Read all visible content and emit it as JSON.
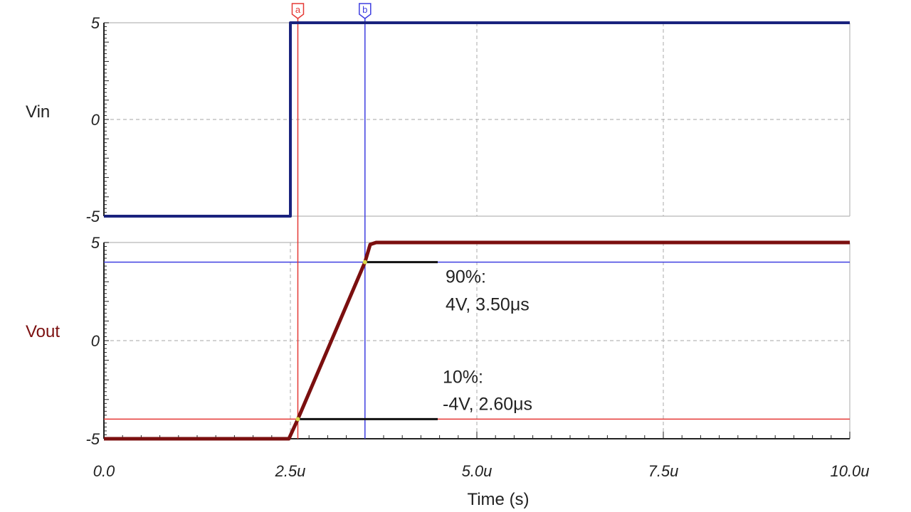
{
  "chart_data": {
    "type": "line",
    "xlabel": "Time (s)",
    "x_ticks": [
      "0.0",
      "2.5u",
      "5.0u",
      "7.5u",
      "10.0u"
    ],
    "x_tick_values": [
      0,
      2.5,
      5.0,
      7.5,
      10.0
    ],
    "xlim": [
      0,
      10.0
    ],
    "grid": true,
    "panels": [
      {
        "ylabel": "Vin",
        "ylim": [
          -5,
          5
        ],
        "y_ticks": [
          "5",
          "0",
          "-5"
        ],
        "y_tick_values": [
          5,
          0,
          -5
        ],
        "series": [
          {
            "x": [
              0,
              2.5,
              2.5,
              10.0
            ],
            "y": [
              -5,
              -5,
              5,
              5
            ],
            "color": "#1a237e"
          }
        ]
      },
      {
        "ylabel": "Vout",
        "ylim": [
          -5,
          5
        ],
        "y_ticks": [
          "5",
          "0",
          "-5"
        ],
        "y_tick_values": [
          5,
          0,
          -5
        ],
        "series": [
          {
            "x": [
              0,
              2.48,
              2.6,
              3.5,
              3.57,
              3.65,
              10.0
            ],
            "y": [
              -5,
              -5,
              -4,
              4,
              4.9,
              5,
              5
            ],
            "color": "#7b0f0f"
          }
        ]
      }
    ],
    "cursors": [
      {
        "label": "a",
        "x": 2.6,
        "color": "#e53935"
      },
      {
        "label": "b",
        "x": 3.5,
        "color": "#3f3fe0"
      }
    ],
    "levels": [
      {
        "y": 4,
        "color": "#3f3fe0"
      },
      {
        "y": -4,
        "color": "#e53935"
      }
    ],
    "annotations": [
      {
        "line1": "90%:",
        "line2": "4V, 3.50μs",
        "x": 3.5,
        "y": 4
      },
      {
        "line1": "10%:",
        "line2": "-4V, 2.60μs",
        "x": 2.6,
        "y": -4
      }
    ],
    "colors": {
      "vin": "#1a237e",
      "vout": "#7b0f0f",
      "cursor_a": "#e53935",
      "cursor_b": "#3f3fe0",
      "grid": "#b8b8b8",
      "axis": "#222222"
    }
  }
}
